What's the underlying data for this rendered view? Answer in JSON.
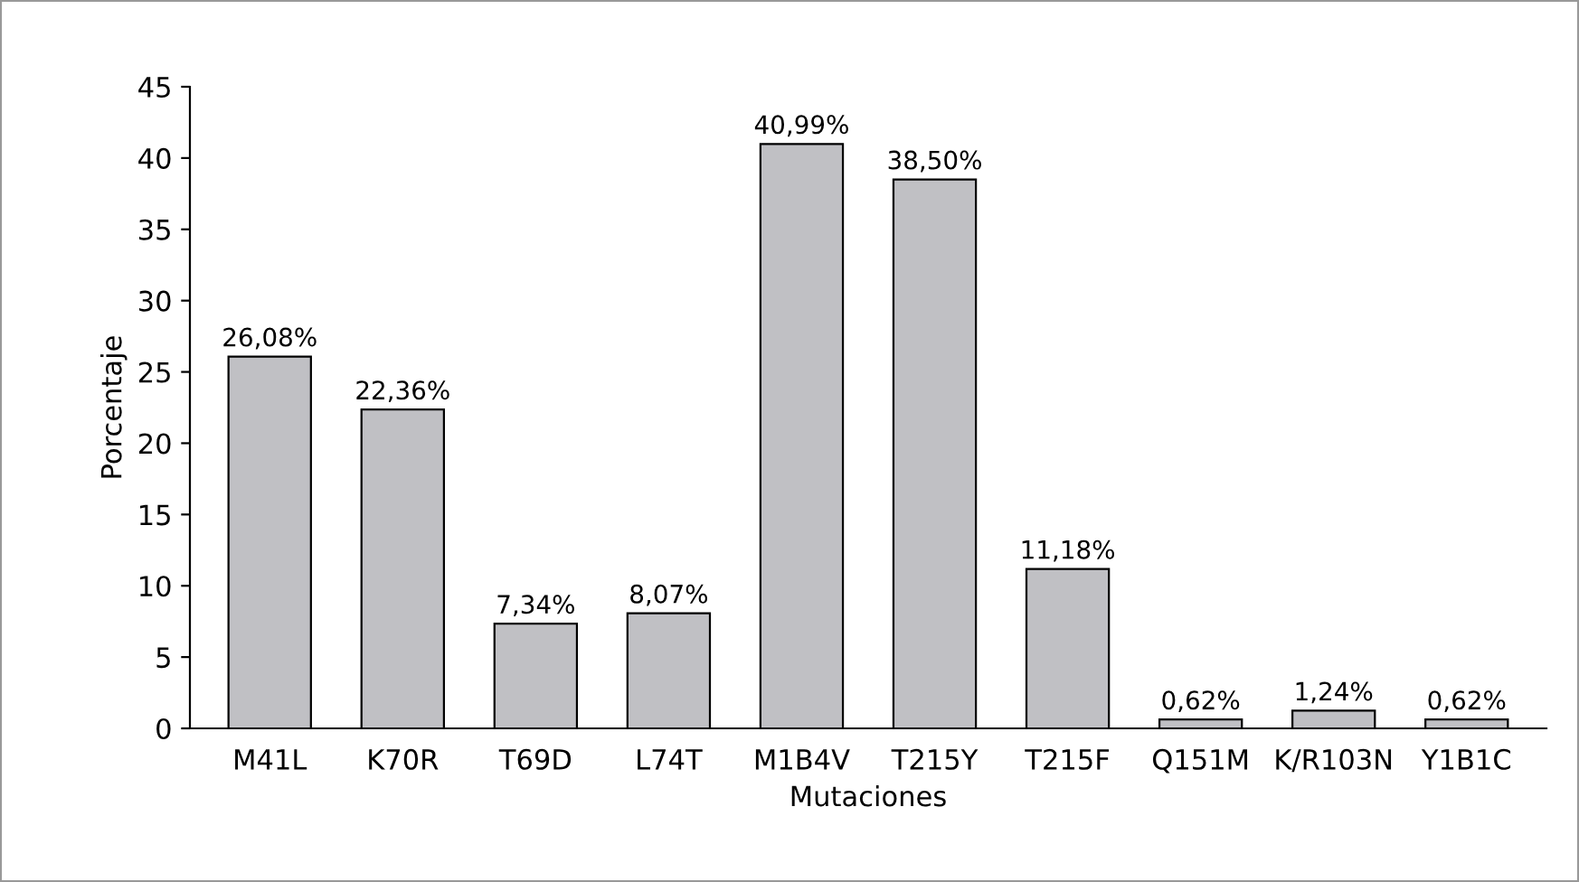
{
  "chart_data": {
    "type": "bar",
    "xlabel": "Mutaciones",
    "ylabel": "Porcentaje",
    "categories": [
      "M41L",
      "K70R",
      "T69D",
      "L74T",
      "M1B4V",
      "T215Y",
      "T215F",
      "Q151M",
      "K/R103N",
      "Y1B1C"
    ],
    "values": [
      26.08,
      22.36,
      7.34,
      8.07,
      40.99,
      38.5,
      11.18,
      0.62,
      1.24,
      0.62
    ],
    "value_labels": [
      "26,08%",
      "22,36%",
      "7,34%",
      "8,07%",
      "40,99%",
      "38,50%",
      "11,18%",
      "0,62%",
      "1,24%",
      "0,62%"
    ],
    "color": "#c0c0c4",
    "ylim": [
      0,
      45
    ],
    "yticks": [
      0,
      5,
      10,
      15,
      20,
      25,
      30,
      35,
      40,
      45
    ],
    "grid": false,
    "legend": false
  }
}
